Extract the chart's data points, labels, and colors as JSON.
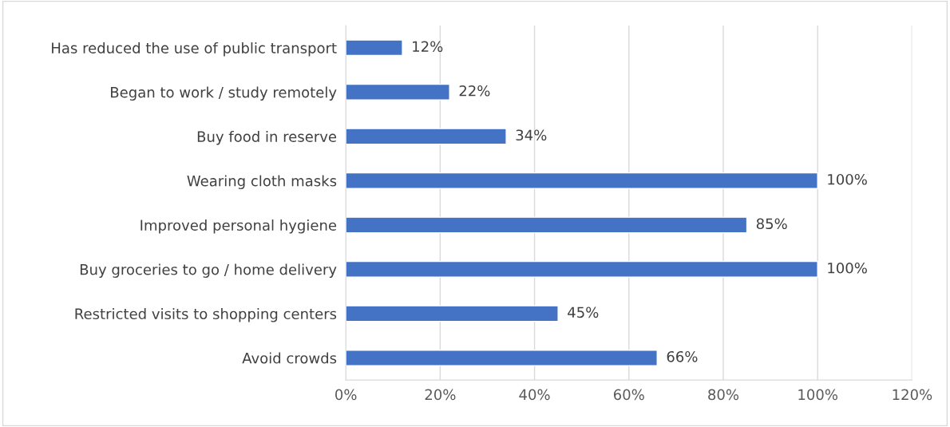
{
  "chart_data": {
    "type": "bar",
    "orientation": "horizontal",
    "categories": [
      "Has reduced the use of public transport",
      "Began to work / study remotely",
      "Buy food in reserve",
      "Wearing cloth masks",
      "Improved personal hygiene",
      "Buy groceries to go / home delivery",
      "Restricted visits to shopping centers",
      "Avoid crowds"
    ],
    "values": [
      12,
      22,
      34,
      100,
      85,
      100,
      45,
      66
    ],
    "value_labels": [
      "12%",
      "22%",
      "34%",
      "100%",
      "85%",
      "100%",
      "45%",
      "66%"
    ],
    "color": "#4472c4",
    "xlim": [
      0,
      120
    ],
    "xticks": [
      {
        "value": 0,
        "label": "0%"
      },
      {
        "value": 20,
        "label": "20%"
      },
      {
        "value": 40,
        "label": "40%"
      },
      {
        "value": 60,
        "label": "60%"
      },
      {
        "value": 80,
        "label": "80%"
      },
      {
        "value": 100,
        "label": "100%"
      },
      {
        "value": 120,
        "label": "120%"
      }
    ],
    "grid": "x",
    "legend": false
  }
}
